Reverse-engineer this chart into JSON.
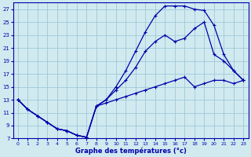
{
  "title": "Graphe des températures (°c)",
  "bg_color": "#d0eaf0",
  "grid_color": "#a0c8d8",
  "line_color": "#0000aa",
  "xlim": [
    -0.5,
    23.5
  ],
  "ylim": [
    7,
    28
  ],
  "yticks": [
    7,
    9,
    11,
    13,
    15,
    17,
    19,
    21,
    23,
    25,
    27
  ],
  "xticks": [
    0,
    1,
    2,
    3,
    4,
    5,
    6,
    7,
    8,
    9,
    10,
    11,
    12,
    13,
    14,
    15,
    16,
    17,
    18,
    19,
    20,
    21,
    22,
    23
  ],
  "line1_x": [
    0,
    1,
    2,
    3,
    4,
    5,
    6,
    7,
    8,
    9,
    10,
    11,
    12,
    13,
    14,
    15,
    16,
    17,
    18,
    19,
    20,
    21,
    22,
    23
  ],
  "line1_y": [
    13,
    11.5,
    10.5,
    9.5,
    8.5,
    8.2,
    7.5,
    7.2,
    12,
    12.5,
    13,
    13.5,
    14,
    14.5,
    15,
    15.5,
    16,
    16.5,
    15,
    15.5,
    16,
    16,
    15.5,
    16
  ],
  "line2_x": [
    0,
    1,
    2,
    3,
    4,
    5,
    6,
    7,
    8,
    9,
    10,
    11,
    12,
    13,
    14,
    15,
    16,
    17,
    18,
    19,
    20,
    21,
    22,
    23
  ],
  "line2_y": [
    13,
    11.5,
    10.5,
    9.5,
    8.5,
    8.2,
    7.5,
    7.2,
    12,
    13,
    14.5,
    16,
    18,
    20.5,
    22,
    23,
    22,
    22.5,
    24,
    25,
    20,
    19,
    17.5,
    16
  ],
  "line3_x": [
    0,
    1,
    2,
    3,
    4,
    5,
    6,
    7,
    8,
    9,
    10,
    11,
    12,
    13,
    14,
    15,
    16,
    17,
    18,
    19,
    20,
    21,
    22,
    23
  ],
  "line3_y": [
    13,
    11.5,
    10.5,
    9.5,
    8.5,
    8.2,
    7.5,
    7.2,
    12,
    13,
    15,
    17.5,
    20.5,
    23.5,
    26,
    27.5,
    27.5,
    27.5,
    27,
    26.8,
    24.5,
    20,
    17.5,
    16
  ]
}
